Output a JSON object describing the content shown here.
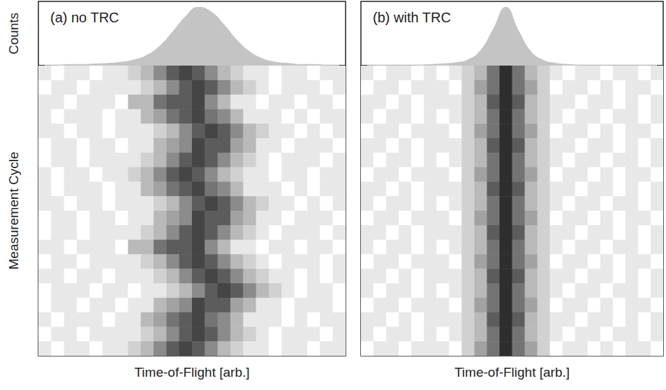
{
  "chart_data": [
    {
      "type": "histogram",
      "title": "(a) no TRC",
      "ylabel": "Counts",
      "bins": [
        0,
        1,
        2,
        3,
        4,
        5,
        6,
        7,
        8,
        9,
        10,
        11,
        12,
        13,
        14,
        15,
        16,
        17,
        18,
        19,
        20,
        21,
        22,
        23,
        24
      ],
      "values": [
        1,
        1,
        2,
        2,
        3,
        4,
        6,
        10,
        18,
        34,
        58,
        84,
        100,
        92,
        70,
        44,
        24,
        12,
        6,
        4,
        2,
        2,
        1,
        1
      ],
      "xlim": [
        0,
        24
      ],
      "ylim": [
        0,
        110
      ],
      "color": "#c4c4c4",
      "grid": false,
      "tick_labels": false
    },
    {
      "type": "heatmap",
      "xlabel": "Time-of-Flight [arb.]",
      "ylabel": "Measurement Cycle",
      "xlim": [
        0,
        24
      ],
      "ylim": [
        0,
        20
      ],
      "color": "#2e2e2e",
      "color_range": [
        0,
        9
      ],
      "grid": false,
      "tick_labels": false,
      "cells": [
        [
          1,
          0,
          1,
          1,
          0,
          1,
          1,
          2,
          3,
          5,
          7,
          8,
          7,
          5,
          3,
          2,
          1,
          1,
          0,
          1,
          1,
          0,
          1,
          1
        ],
        [
          0,
          1,
          1,
          0,
          1,
          1,
          1,
          1,
          2,
          3,
          5,
          7,
          8,
          7,
          5,
          3,
          2,
          1,
          0,
          1,
          1,
          1,
          0,
          1
        ],
        [
          1,
          1,
          0,
          1,
          1,
          1,
          0,
          3,
          3,
          6,
          7,
          7,
          8,
          5,
          3,
          1,
          1,
          0,
          1,
          1,
          0,
          1,
          1,
          0
        ],
        [
          1,
          0,
          1,
          1,
          1,
          0,
          1,
          1,
          3,
          4,
          6,
          7,
          8,
          6,
          5,
          3,
          1,
          1,
          1,
          0,
          1,
          0,
          1,
          1
        ],
        [
          1,
          1,
          0,
          1,
          1,
          0,
          1,
          1,
          1,
          2,
          3,
          5,
          7,
          8,
          7,
          5,
          3,
          2,
          1,
          1,
          0,
          1,
          0,
          1
        ],
        [
          0,
          1,
          1,
          0,
          1,
          1,
          0,
          1,
          1,
          3,
          4,
          5,
          8,
          7,
          7,
          4,
          3,
          1,
          1,
          0,
          1,
          1,
          1,
          0
        ],
        [
          0,
          1,
          1,
          0,
          1,
          1,
          1,
          1,
          2,
          3,
          5,
          7,
          8,
          7,
          5,
          3,
          2,
          1,
          0,
          1,
          1,
          1,
          0,
          1
        ],
        [
          1,
          0,
          1,
          1,
          0,
          1,
          1,
          2,
          3,
          5,
          7,
          8,
          7,
          5,
          3,
          2,
          1,
          1,
          0,
          1,
          1,
          0,
          1,
          1
        ],
        [
          1,
          0,
          1,
          1,
          1,
          0,
          1,
          1,
          3,
          4,
          6,
          7,
          8,
          6,
          5,
          3,
          1,
          1,
          1,
          0,
          1,
          0,
          1,
          1
        ],
        [
          1,
          1,
          0,
          1,
          1,
          0,
          1,
          1,
          1,
          2,
          3,
          5,
          7,
          8,
          7,
          5,
          3,
          2,
          1,
          1,
          0,
          1,
          0,
          1
        ],
        [
          0,
          1,
          1,
          0,
          1,
          1,
          0,
          1,
          1,
          3,
          4,
          5,
          8,
          7,
          7,
          4,
          3,
          1,
          1,
          0,
          1,
          1,
          1,
          0
        ],
        [
          0,
          1,
          1,
          0,
          1,
          1,
          1,
          1,
          2,
          3,
          5,
          7,
          8,
          7,
          5,
          3,
          2,
          1,
          0,
          1,
          1,
          1,
          0,
          1
        ],
        [
          1,
          1,
          0,
          1,
          1,
          1,
          0,
          3,
          3,
          6,
          7,
          7,
          8,
          5,
          3,
          1,
          1,
          0,
          1,
          1,
          0,
          1,
          1,
          0
        ],
        [
          0,
          1,
          1,
          0,
          1,
          1,
          1,
          1,
          2,
          3,
          5,
          7,
          8,
          7,
          5,
          3,
          2,
          1,
          0,
          1,
          1,
          1,
          0,
          1
        ],
        [
          1,
          1,
          0,
          1,
          1,
          0,
          1,
          1,
          1,
          2,
          3,
          5,
          7,
          8,
          7,
          5,
          3,
          2,
          1,
          1,
          0,
          1,
          0,
          1
        ],
        [
          0,
          1,
          1,
          1,
          0,
          1,
          1,
          0,
          1,
          1,
          2,
          3,
          5,
          7,
          8,
          7,
          5,
          3,
          2,
          1,
          0,
          1,
          1,
          0
        ],
        [
          0,
          1,
          1,
          0,
          1,
          1,
          0,
          1,
          1,
          3,
          4,
          5,
          8,
          7,
          7,
          4,
          3,
          1,
          1,
          0,
          1,
          1,
          1,
          0
        ],
        [
          1,
          0,
          1,
          1,
          1,
          0,
          1,
          1,
          3,
          4,
          6,
          7,
          8,
          6,
          5,
          3,
          1,
          1,
          1,
          0,
          1,
          0,
          1,
          1
        ],
        [
          0,
          1,
          1,
          0,
          1,
          1,
          1,
          1,
          2,
          3,
          5,
          7,
          8,
          7,
          5,
          3,
          2,
          1,
          0,
          1,
          1,
          1,
          0,
          1
        ],
        [
          1,
          0,
          1,
          1,
          0,
          1,
          1,
          2,
          3,
          5,
          7,
          8,
          7,
          5,
          3,
          2,
          1,
          1,
          0,
          1,
          1,
          0,
          1,
          1
        ]
      ]
    },
    {
      "type": "histogram",
      "title": "(b) with TRC",
      "bins": [
        0,
        1,
        2,
        3,
        4,
        5,
        6,
        7,
        8,
        9,
        10,
        11,
        12,
        13,
        14,
        15,
        16,
        17,
        18,
        19,
        20,
        21,
        22,
        23,
        24
      ],
      "values": [
        1,
        1,
        1,
        1,
        1,
        2,
        3,
        5,
        10,
        26,
        62,
        100,
        60,
        24,
        9,
        4,
        2,
        1,
        1,
        1,
        1,
        1,
        1,
        1
      ],
      "xlim": [
        0,
        24
      ],
      "ylim": [
        0,
        110
      ],
      "color": "#c4c4c4",
      "grid": false,
      "tick_labels": false
    },
    {
      "type": "heatmap",
      "xlabel": "Time-of-Flight [arb.]",
      "xlim": [
        0,
        24
      ],
      "ylim": [
        0,
        20
      ],
      "color": "#2e2e2e",
      "color_range": [
        0,
        9
      ],
      "grid": false,
      "tick_labels": false,
      "cells": [
        [
          1,
          0,
          1,
          1,
          0,
          1,
          0,
          1,
          2,
          3,
          6,
          9,
          6,
          3,
          2,
          1,
          0,
          1,
          1,
          0,
          1,
          1,
          0,
          1
        ],
        [
          0,
          1,
          1,
          0,
          1,
          1,
          1,
          0,
          2,
          4,
          6,
          9,
          6,
          4,
          2,
          0,
          1,
          1,
          0,
          1,
          0,
          1,
          1,
          0
        ],
        [
          1,
          1,
          0,
          1,
          0,
          1,
          1,
          1,
          2,
          3,
          7,
          9,
          7,
          3,
          2,
          1,
          1,
          0,
          1,
          1,
          0,
          1,
          0,
          1
        ],
        [
          1,
          0,
          1,
          1,
          0,
          1,
          0,
          1,
          2,
          3,
          6,
          9,
          6,
          3,
          2,
          1,
          0,
          1,
          1,
          0,
          1,
          1,
          0,
          1
        ],
        [
          0,
          1,
          1,
          0,
          1,
          1,
          1,
          0,
          2,
          4,
          6,
          9,
          6,
          4,
          2,
          0,
          1,
          1,
          0,
          1,
          0,
          1,
          1,
          0
        ],
        [
          1,
          1,
          0,
          1,
          0,
          1,
          1,
          1,
          2,
          3,
          7,
          9,
          7,
          3,
          2,
          1,
          1,
          0,
          1,
          1,
          0,
          1,
          0,
          1
        ],
        [
          1,
          0,
          1,
          1,
          0,
          1,
          0,
          1,
          2,
          3,
          6,
          9,
          6,
          3,
          2,
          1,
          0,
          1,
          1,
          0,
          1,
          1,
          0,
          1
        ],
        [
          0,
          1,
          1,
          0,
          1,
          1,
          1,
          0,
          2,
          4,
          6,
          9,
          6,
          4,
          2,
          0,
          1,
          1,
          0,
          1,
          0,
          1,
          1,
          0
        ],
        [
          1,
          1,
          0,
          1,
          0,
          1,
          1,
          1,
          2,
          3,
          7,
          9,
          7,
          3,
          2,
          1,
          1,
          0,
          1,
          1,
          0,
          1,
          0,
          1
        ],
        [
          1,
          0,
          1,
          1,
          0,
          1,
          0,
          1,
          2,
          3,
          6,
          9,
          6,
          3,
          2,
          1,
          0,
          1,
          1,
          0,
          1,
          1,
          0,
          1
        ],
        [
          0,
          1,
          1,
          0,
          1,
          1,
          1,
          0,
          2,
          4,
          6,
          9,
          6,
          4,
          2,
          0,
          1,
          1,
          0,
          1,
          0,
          1,
          1,
          0
        ],
        [
          1,
          1,
          0,
          1,
          0,
          1,
          1,
          1,
          2,
          3,
          7,
          9,
          7,
          3,
          2,
          1,
          1,
          0,
          1,
          1,
          0,
          1,
          0,
          1
        ],
        [
          1,
          0,
          1,
          1,
          0,
          1,
          0,
          1,
          2,
          3,
          6,
          9,
          6,
          3,
          2,
          1,
          0,
          1,
          1,
          0,
          1,
          1,
          0,
          1
        ],
        [
          0,
          1,
          1,
          0,
          1,
          1,
          1,
          0,
          2,
          4,
          6,
          9,
          6,
          4,
          2,
          0,
          1,
          1,
          0,
          1,
          0,
          1,
          1,
          0
        ],
        [
          1,
          1,
          0,
          1,
          0,
          1,
          1,
          1,
          2,
          3,
          7,
          9,
          7,
          3,
          2,
          1,
          1,
          0,
          1,
          1,
          0,
          1,
          0,
          1
        ],
        [
          1,
          0,
          1,
          1,
          0,
          1,
          0,
          1,
          2,
          3,
          6,
          9,
          6,
          3,
          2,
          1,
          0,
          1,
          1,
          0,
          1,
          1,
          0,
          1
        ],
        [
          0,
          1,
          1,
          0,
          1,
          1,
          1,
          0,
          2,
          4,
          6,
          9,
          6,
          4,
          2,
          0,
          1,
          1,
          0,
          1,
          0,
          1,
          1,
          0
        ],
        [
          1,
          1,
          0,
          1,
          0,
          1,
          1,
          1,
          2,
          3,
          7,
          9,
          7,
          3,
          2,
          1,
          1,
          0,
          1,
          1,
          0,
          1,
          0,
          1
        ],
        [
          1,
          0,
          1,
          1,
          0,
          1,
          0,
          1,
          2,
          3,
          6,
          9,
          6,
          3,
          2,
          1,
          0,
          1,
          1,
          0,
          1,
          1,
          0,
          1
        ],
        [
          0,
          1,
          1,
          0,
          1,
          1,
          1,
          0,
          2,
          4,
          6,
          9,
          6,
          4,
          2,
          0,
          1,
          1,
          0,
          1,
          0,
          1,
          1,
          0
        ]
      ]
    }
  ]
}
